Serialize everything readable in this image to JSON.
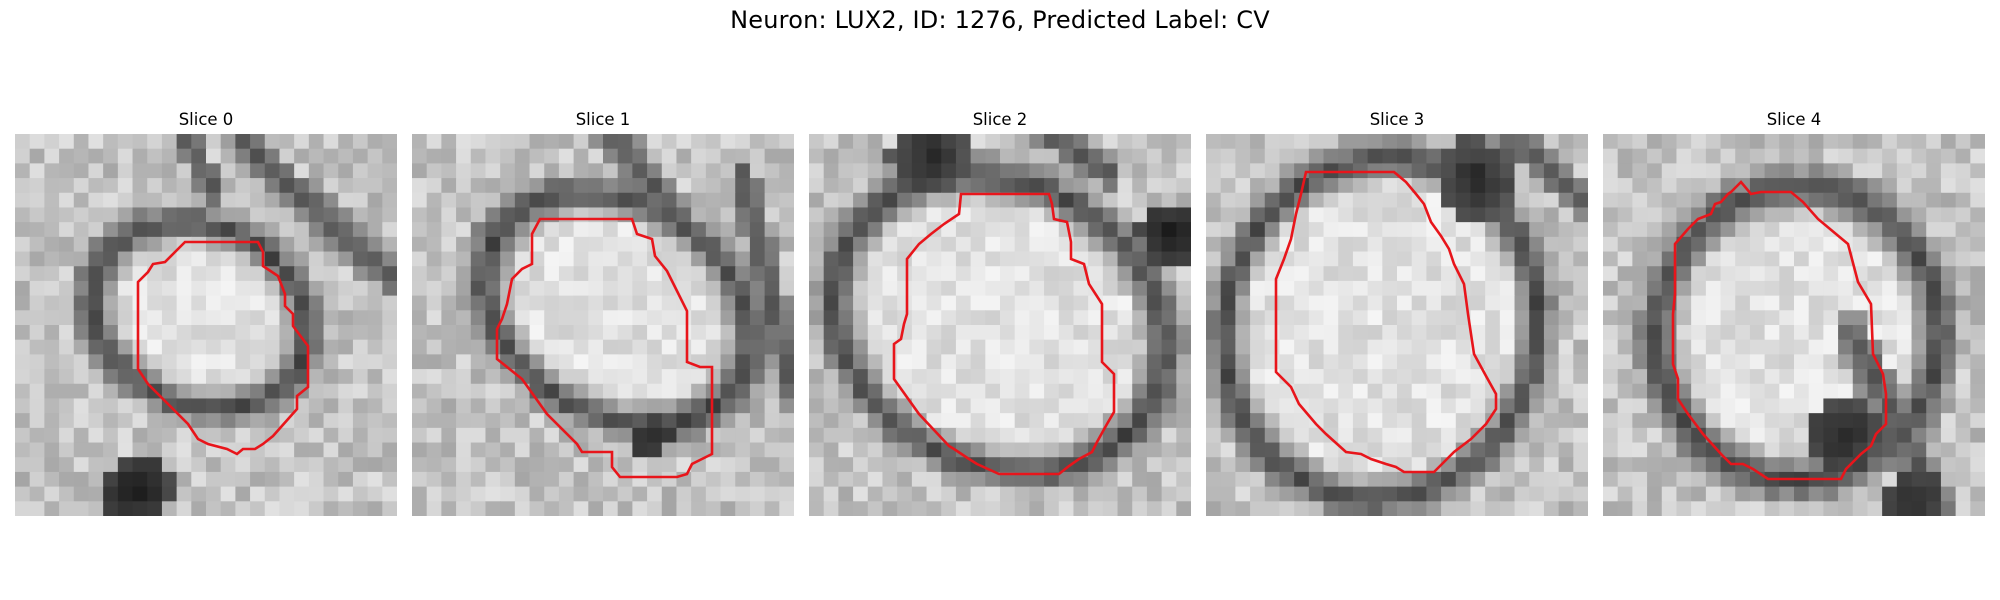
{
  "figure": {
    "title": "Neuron: LUX2, ID: 1276, Predicted Label: CV"
  },
  "panels": [
    {
      "title": "Slice 0"
    },
    {
      "title": "Slice 1"
    },
    {
      "title": "Slice 2"
    },
    {
      "title": "Slice 3"
    },
    {
      "title": "Slice 4"
    }
  ],
  "contour_color": "#e8151b"
}
